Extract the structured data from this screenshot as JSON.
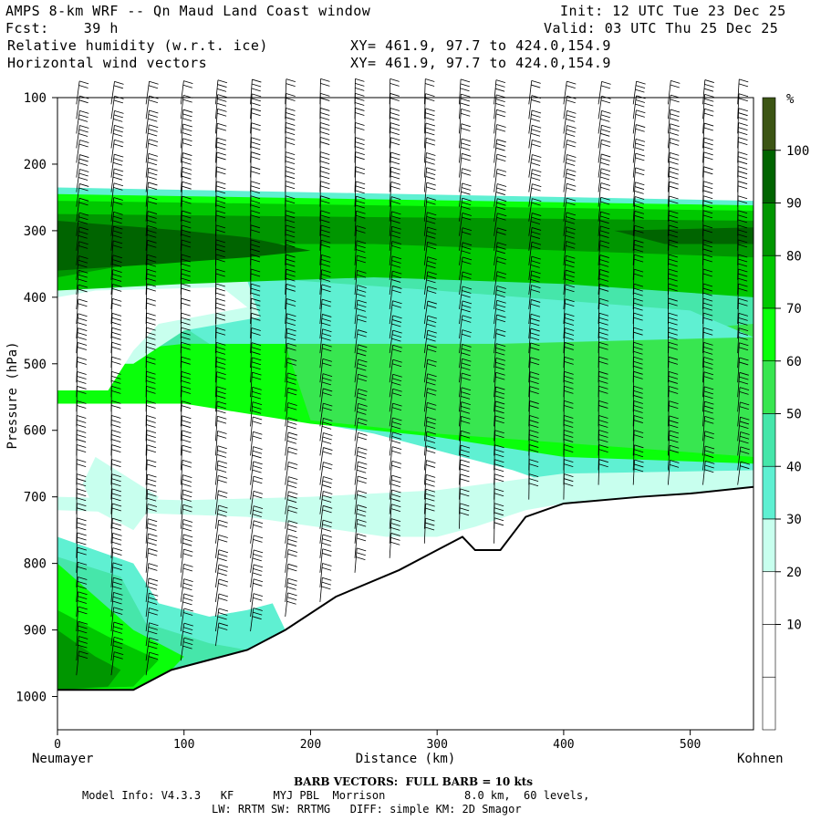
{
  "header": {
    "title": "AMPS 8-km WRF -- Qn Maud Land Coast window",
    "fcst": "Fcst:    39 h",
    "field1": "Relative humidity (w.r.t. ice)",
    "field2": "Horizontal wind vectors",
    "xy1": "XY= 461.9, 97.7 to 424.0,154.9",
    "xy2": "XY= 461.9, 97.7 to 424.0,154.9",
    "init": "Init: 12 UTC Tue 23 Dec 25",
    "valid": "Valid: 03 UTC Thu 25 Dec 25"
  },
  "chart_data": {
    "type": "heatmap",
    "title": "Relative humidity (w.r.t. ice) cross section with horizontal wind barbs",
    "xlabel": "Distance (km)",
    "ylabel": "Pressure (hPa)",
    "xlim": [
      0,
      550
    ],
    "ylim": [
      1050,
      100
    ],
    "x_ticks": [
      "0",
      "100",
      "200",
      "300",
      "400",
      "500"
    ],
    "x_tick_values": [
      0,
      100,
      200,
      300,
      400,
      500
    ],
    "y_ticks": [
      "100",
      "200",
      "300",
      "400",
      "500",
      "600",
      "700",
      "800",
      "900",
      "1000"
    ],
    "y_tick_values": [
      100,
      200,
      300,
      400,
      500,
      600,
      700,
      800,
      900,
      1000
    ],
    "left_endpoint": "Neumayer",
    "right_endpoint": "Kohnen",
    "colorbar": {
      "unit": "%",
      "labels": [
        "100",
        "90",
        "80",
        "70",
        "60",
        "50",
        "40",
        "30",
        "20",
        "10"
      ],
      "levels": [
        0,
        10,
        20,
        30,
        40,
        50,
        60,
        70,
        80,
        90,
        100,
        110
      ],
      "colors": [
        "#ffffff",
        "#ffffff",
        "#ffffff",
        "#c8ffee",
        "#5ff0d2",
        "#46e6aa",
        "#38e650",
        "#0aff0a",
        "#00c800",
        "#009600",
        "#006400",
        "#3c5514"
      ]
    },
    "terrain_surface_hpa": [
      [
        0,
        990
      ],
      [
        60,
        990
      ],
      [
        90,
        960
      ],
      [
        150,
        930
      ],
      [
        180,
        900
      ],
      [
        220,
        850
      ],
      [
        270,
        810
      ],
      [
        300,
        780
      ],
      [
        320,
        760
      ],
      [
        330,
        780
      ],
      [
        350,
        780
      ],
      [
        370,
        730
      ],
      [
        400,
        710
      ],
      [
        460,
        700
      ],
      [
        500,
        695
      ],
      [
        550,
        685
      ]
    ],
    "rh_regions": [
      {
        "level": 40,
        "points": [
          [
            0,
            235
          ],
          [
            550,
            255
          ],
          [
            550,
            700
          ],
          [
            420,
            700
          ],
          [
            360,
            660
          ],
          [
            250,
            605
          ],
          [
            120,
            560
          ],
          [
            0,
            530
          ]
        ]
      },
      {
        "level": 70,
        "points": [
          [
            0,
            245
          ],
          [
            550,
            262
          ],
          [
            550,
            650
          ],
          [
            400,
            640
          ],
          [
            300,
            610
          ],
          [
            200,
            590
          ],
          [
            100,
            560
          ],
          [
            0,
            560
          ]
        ]
      },
      {
        "level": 60,
        "points": [
          [
            180,
            430
          ],
          [
            550,
            410
          ],
          [
            550,
            640
          ],
          [
            300,
            605
          ],
          [
            200,
            585
          ],
          [
            180,
            470
          ]
        ]
      },
      {
        "level": 50,
        "points": [
          [
            0,
            350
          ],
          [
            550,
            350
          ],
          [
            550,
            440
          ],
          [
            350,
            470
          ],
          [
            200,
            470
          ],
          [
            100,
            470
          ],
          [
            0,
            490
          ]
        ]
      },
      {
        "level": 40,
        "points": [
          [
            80,
            360
          ],
          [
            300,
            390
          ],
          [
            500,
            420
          ],
          [
            550,
            460
          ],
          [
            350,
            470
          ],
          [
            250,
            470
          ],
          [
            120,
            470
          ],
          [
            80,
            420
          ]
        ]
      },
      {
        "level": 30,
        "points": [
          [
            0,
            360
          ],
          [
            80,
            370
          ],
          [
            150,
            375
          ],
          [
            160,
            430
          ],
          [
            100,
            450
          ],
          [
            60,
            500
          ],
          [
            0,
            500
          ]
        ]
      },
      {
        "level": 20,
        "points": [
          [
            30,
            390
          ],
          [
            130,
            385
          ],
          [
            150,
            415
          ],
          [
            80,
            440
          ],
          [
            60,
            480
          ],
          [
            40,
            540
          ],
          [
            0,
            540
          ],
          [
            0,
            400
          ]
        ]
      },
      {
        "level": 80,
        "points": [
          [
            0,
            255
          ],
          [
            550,
            270
          ],
          [
            550,
            400
          ],
          [
            400,
            380
          ],
          [
            250,
            370
          ],
          [
            100,
            380
          ],
          [
            0,
            390
          ]
        ]
      },
      {
        "level": 90,
        "points": [
          [
            0,
            275
          ],
          [
            550,
            285
          ],
          [
            550,
            340
          ],
          [
            400,
            330
          ],
          [
            250,
            320
          ],
          [
            150,
            320
          ],
          [
            0,
            370
          ]
        ]
      },
      {
        "level": 100,
        "points": [
          [
            0,
            285
          ],
          [
            100,
            300
          ],
          [
            150,
            310
          ],
          [
            200,
            330
          ],
          [
            150,
            340
          ],
          [
            80,
            350
          ],
          [
            0,
            360
          ]
        ]
      },
      {
        "level": 100,
        "points": [
          [
            440,
            300
          ],
          [
            550,
            295
          ],
          [
            550,
            320
          ],
          [
            480,
            320
          ]
        ]
      },
      {
        "level": 30,
        "points": [
          [
            0,
            720
          ],
          [
            150,
            730
          ],
          [
            260,
            760
          ],
          [
            300,
            760
          ],
          [
            330,
            745
          ],
          [
            370,
            720
          ],
          [
            400,
            710
          ],
          [
            550,
            690
          ],
          [
            550,
            660
          ],
          [
            400,
            665
          ],
          [
            300,
            690
          ],
          [
            200,
            700
          ],
          [
            100,
            705
          ],
          [
            0,
            700
          ]
        ]
      },
      {
        "level": 40,
        "points": [
          [
            0,
            760
          ],
          [
            60,
            800
          ],
          [
            80,
            860
          ],
          [
            120,
            880
          ],
          [
            150,
            870
          ],
          [
            170,
            860
          ],
          [
            180,
            900
          ],
          [
            150,
            930
          ],
          [
            90,
            960
          ],
          [
            60,
            990
          ],
          [
            0,
            990
          ]
        ]
      },
      {
        "level": 50,
        "points": [
          [
            0,
            790
          ],
          [
            50,
            820
          ],
          [
            70,
            890
          ],
          [
            120,
            920
          ],
          [
            150,
            930
          ],
          [
            90,
            960
          ],
          [
            60,
            990
          ],
          [
            0,
            990
          ]
        ]
      },
      {
        "level": 70,
        "points": [
          [
            0,
            800
          ],
          [
            30,
            850
          ],
          [
            60,
            900
          ],
          [
            100,
            940
          ],
          [
            90,
            960
          ],
          [
            60,
            990
          ],
          [
            0,
            990
          ]
        ]
      },
      {
        "level": 80,
        "points": [
          [
            0,
            870
          ],
          [
            40,
            910
          ],
          [
            80,
            945
          ],
          [
            60,
            985
          ],
          [
            0,
            990
          ]
        ]
      },
      {
        "level": 90,
        "points": [
          [
            0,
            900
          ],
          [
            30,
            940
          ],
          [
            50,
            960
          ],
          [
            40,
            985
          ],
          [
            0,
            990
          ]
        ]
      },
      {
        "level": 20,
        "points": [
          [
            100,
            730
          ],
          [
            150,
            760
          ],
          [
            200,
            790
          ],
          [
            230,
            800
          ],
          [
            180,
            820
          ],
          [
            150,
            840
          ],
          [
            120,
            830
          ],
          [
            100,
            780
          ]
        ]
      },
      {
        "level": 30,
        "points": [
          [
            30,
            640
          ],
          [
            80,
            700
          ],
          [
            60,
            750
          ],
          [
            30,
            720
          ],
          [
            20,
            680
          ]
        ]
      }
    ],
    "wind_barbs": "horizontal wind barbs on regular grid, mostly 10-40 kt",
    "barb_note": "BARB VECTORS:  FULL BARB = 10 kts"
  },
  "footer": {
    "barb": "BARB VECTORS:  FULL BARB = 10 kts",
    "model": "Model Info: V4.3.3   KF      MYJ PBL  Morrison            8.0 km,  60 levels,",
    "model2": "LW: RRTM SW: RRTMG   DIFF: simple KM: 2D Smagor"
  }
}
